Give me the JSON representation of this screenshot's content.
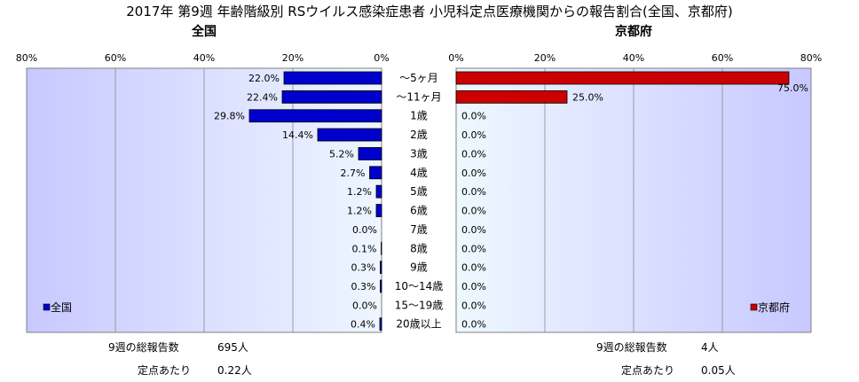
{
  "title": "2017年 第9週 年齢階級別 RSウイルス感染症患者 小児科定点医療機関からの報告割合(全国、京都府)",
  "chart_data": {
    "type": "bar",
    "orientation": "horizontal",
    "categories": [
      "～5ヶ月",
      "～11ヶ月",
      "1歳",
      "2歳",
      "3歳",
      "4歳",
      "5歳",
      "6歳",
      "7歳",
      "8歳",
      "9歳",
      "10～14歳",
      "15～19歳",
      "20歳以上"
    ],
    "xlim": [
      0,
      80
    ],
    "x_ticks": [
      "80%",
      "60%",
      "40%",
      "20%",
      "0%"
    ],
    "x_ticks_right": [
      "0%",
      "20%",
      "40%",
      "60%",
      "80%"
    ],
    "grid": true,
    "series": [
      {
        "name": "全国",
        "subtitle": "全国",
        "color": "#0000cc",
        "values": [
          22.0,
          22.4,
          29.8,
          14.4,
          5.2,
          2.7,
          1.2,
          1.2,
          0.0,
          0.1,
          0.3,
          0.3,
          0.0,
          0.4
        ],
        "labels": [
          "22.0%",
          "22.4%",
          "29.8%",
          "14.4%",
          "5.2%",
          "2.7%",
          "1.2%",
          "1.2%",
          "0.0%",
          "0.1%",
          "0.3%",
          "0.3%",
          "0.0%",
          "0.4%"
        ],
        "legend": "全国",
        "legend_position": "bottom-left"
      },
      {
        "name": "京都府",
        "subtitle": "京都府",
        "color": "#cc0000",
        "values": [
          75.0,
          25.0,
          0.0,
          0.0,
          0.0,
          0.0,
          0.0,
          0.0,
          0.0,
          0.0,
          0.0,
          0.0,
          0.0,
          0.0
        ],
        "labels": [
          "75.0%",
          "25.0%",
          "0.0%",
          "0.0%",
          "0.0%",
          "0.0%",
          "0.0%",
          "0.0%",
          "0.0%",
          "0.0%",
          "0.0%",
          "0.0%",
          "0.0%",
          "0.0%"
        ],
        "legend": "京都府",
        "legend_position": "bottom-right"
      }
    ]
  },
  "footer": {
    "left": {
      "total_label": "9週の総報告数",
      "total_value": "695人",
      "per_label": "定点あたり",
      "per_value": "0.22人"
    },
    "right": {
      "total_label": "9週の総報告数",
      "total_value": "4人",
      "per_label": "定点あたり",
      "per_value": "0.05人"
    }
  }
}
